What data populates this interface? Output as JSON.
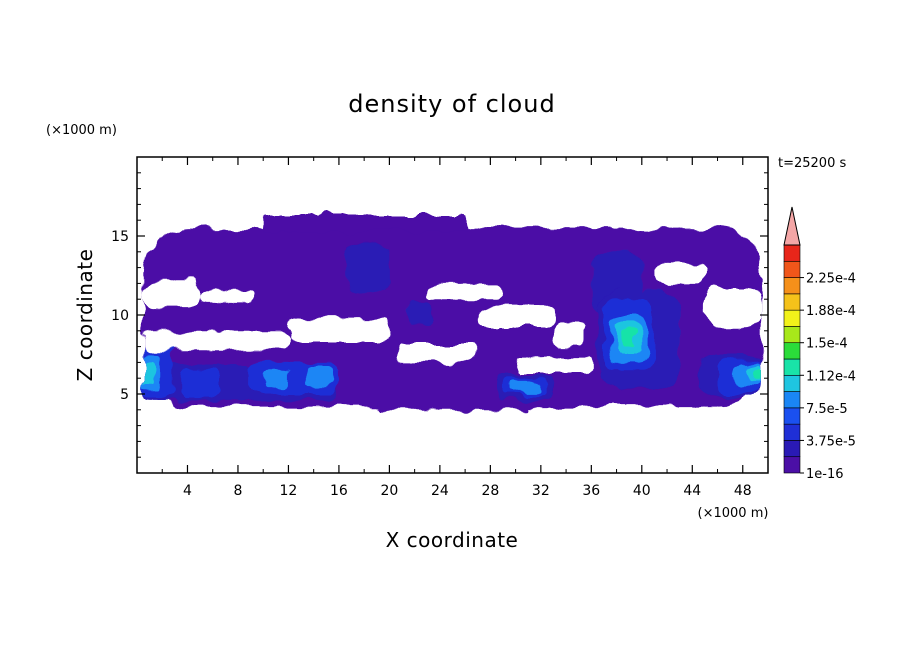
{
  "chart_data": {
    "type": "heatmap",
    "title": "density of cloud",
    "xlabel": "X coordinate",
    "ylabel": "Z coordinate",
    "x_unit": "(×1000 m)",
    "y_unit": "(×1000 m)",
    "time_label": "t=25200 s",
    "xlim": [
      0,
      50
    ],
    "ylim": [
      0,
      20
    ],
    "xticks": [
      4,
      8,
      12,
      16,
      20,
      24,
      28,
      32,
      36,
      40,
      44,
      48
    ],
    "yticks": [
      5,
      10,
      15
    ],
    "colorbar": {
      "levels": [
        1e-16,
        1.875e-05,
        3.75e-05,
        5.625e-05,
        7.5e-05,
        9.375e-05,
        0.0001125,
        0.00013125,
        0.00015,
        0.00016875,
        0.0001875,
        0.00020625,
        0.000225,
        0.00024375
      ],
      "colors": [
        "#4b0fa6",
        "#2a1ab5",
        "#1f2fd6",
        "#1a50f0",
        "#1a86f5",
        "#1fc5e0",
        "#19e3a8",
        "#2bdc3a",
        "#a8e81a",
        "#f2f21a",
        "#f5c21a",
        "#f5901a",
        "#f0561a",
        "#e8261a"
      ],
      "tick_labels": [
        "1e-16",
        "3.75e-5",
        "7.5e-5",
        "1.12e-4",
        "1.5e-4",
        "1.88e-4",
        "2.25e-4"
      ],
      "tick_levels": [
        0,
        2,
        4,
        6,
        8,
        10,
        12
      ],
      "overflow_color": "#f4a6a6"
    },
    "cloud_regions": [
      {
        "level": 0,
        "x0": 0.5,
        "x1": 49.5,
        "z0": 4.2,
        "z1": 15.5,
        "note": "main layer"
      },
      {
        "level": 0,
        "x0": 10,
        "x1": 26,
        "z0": 15.3,
        "z1": 16.3
      },
      {
        "level": 0,
        "x0": 19,
        "x1": 31,
        "z0": 4.0,
        "z1": 4.6
      },
      {
        "level": 1,
        "x0": 16.5,
        "x1": 20,
        "z0": 11.5,
        "z1": 14.5
      },
      {
        "level": 1,
        "x0": 36,
        "x1": 40,
        "z0": 10,
        "z1": 14
      },
      {
        "level": 1,
        "x0": 0.5,
        "x1": 16,
        "z0": 4.6,
        "z1": 6.8
      },
      {
        "level": 1,
        "x0": 28.5,
        "x1": 33,
        "z0": 4.6,
        "z1": 6.2
      },
      {
        "level": 1,
        "x0": 36.5,
        "x1": 43,
        "z0": 5.5,
        "z1": 11.5
      },
      {
        "level": 1,
        "x0": 44.5,
        "x1": 49.5,
        "z0": 4.8,
        "z1": 7.5
      },
      {
        "level": 1,
        "x0": 21.5,
        "x1": 23.5,
        "z0": 9.5,
        "z1": 10.8
      },
      {
        "level": 2,
        "x0": 0.5,
        "x1": 3,
        "z0": 4.8,
        "z1": 8.5
      },
      {
        "level": 2,
        "x0": 3.5,
        "x1": 6.5,
        "z0": 4.8,
        "z1": 6.5
      },
      {
        "level": 2,
        "x0": 9,
        "x1": 16,
        "z0": 5.0,
        "z1": 7.0
      },
      {
        "level": 2,
        "x0": 29,
        "x1": 32.5,
        "z0": 4.9,
        "z1": 6.0
      },
      {
        "level": 2,
        "x0": 37,
        "x1": 41,
        "z0": 6.5,
        "z1": 11
      },
      {
        "level": 2,
        "x0": 46,
        "x1": 49.5,
        "z0": 5.0,
        "z1": 7.2
      },
      {
        "level": 4,
        "x0": 0.5,
        "x1": 1.8,
        "z0": 5.3,
        "z1": 7.6
      },
      {
        "level": 4,
        "x0": 10,
        "x1": 12,
        "z0": 5.5,
        "z1": 6.5
      },
      {
        "level": 4,
        "x0": 13.5,
        "x1": 15.5,
        "z0": 5.5,
        "z1": 6.8
      },
      {
        "level": 4,
        "x0": 29.5,
        "x1": 32,
        "z0": 5.1,
        "z1": 5.8
      },
      {
        "level": 4,
        "x0": 37.5,
        "x1": 40.5,
        "z0": 7,
        "z1": 10
      },
      {
        "level": 4,
        "x0": 47.5,
        "x1": 49.5,
        "z0": 5.5,
        "z1": 7
      },
      {
        "level": 5,
        "x0": 0.5,
        "x1": 1.3,
        "z0": 5.6,
        "z1": 7.0
      },
      {
        "level": 5,
        "x0": 38,
        "x1": 40,
        "z0": 7.5,
        "z1": 9.5
      },
      {
        "level": 5,
        "x0": 48.3,
        "x1": 49.5,
        "z0": 5.8,
        "z1": 6.8
      },
      {
        "level": 6,
        "x0": 38.5,
        "x1": 39.5,
        "z0": 8.0,
        "z1": 9.0
      },
      {
        "level": 6,
        "x0": 48.7,
        "x1": 49.5,
        "z0": 6.0,
        "z1": 6.6
      }
    ],
    "clear_gaps": [
      {
        "x0": 0.5,
        "x1": 5,
        "z0": 10.5,
        "z1": 12.2
      },
      {
        "x0": 5,
        "x1": 9,
        "z0": 10.8,
        "z1": 11.6
      },
      {
        "x0": 0.5,
        "x1": 12,
        "z0": 7.8,
        "z1": 9.0
      },
      {
        "x0": 12,
        "x1": 20,
        "z0": 8.2,
        "z1": 9.8
      },
      {
        "x0": 20.5,
        "x1": 27,
        "z0": 7.0,
        "z1": 8.2
      },
      {
        "x0": 27,
        "x1": 33,
        "z0": 9.3,
        "z1": 10.5
      },
      {
        "x0": 30,
        "x1": 36,
        "z0": 6.3,
        "z1": 7.3
      },
      {
        "x0": 45,
        "x1": 49.5,
        "z0": 9.0,
        "z1": 11.8
      },
      {
        "x0": 41,
        "x1": 45,
        "z0": 12.0,
        "z1": 13.3
      },
      {
        "x0": 23,
        "x1": 29,
        "z0": 11.0,
        "z1": 12.0
      },
      {
        "x0": 33,
        "x1": 35.5,
        "z0": 8.0,
        "z1": 9.5
      }
    ]
  }
}
